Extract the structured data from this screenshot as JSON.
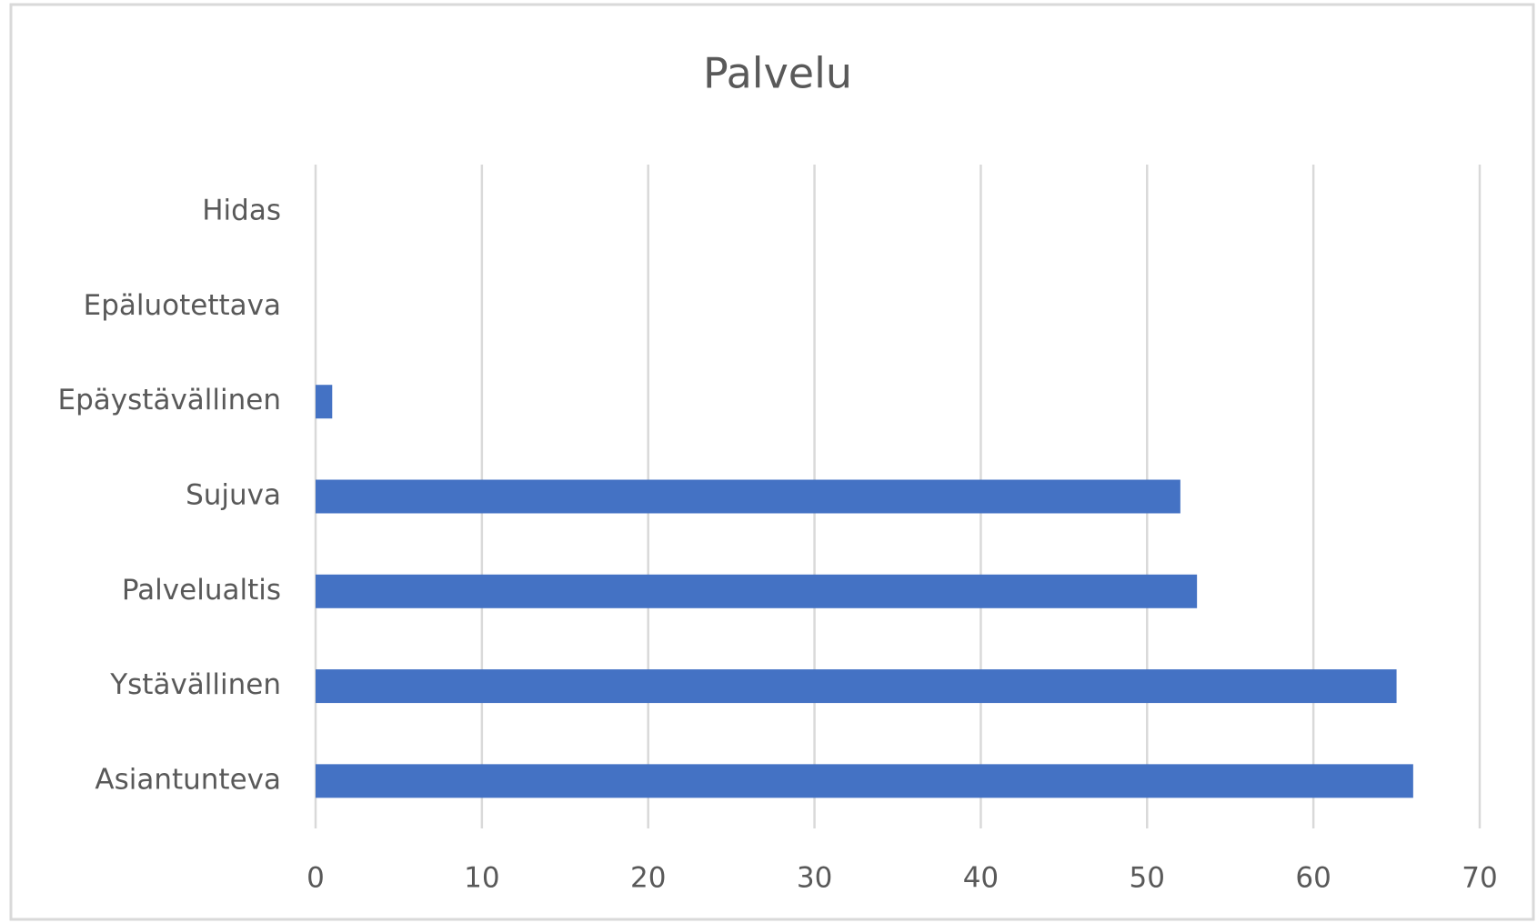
{
  "chart_data": {
    "type": "bar",
    "orientation": "horizontal",
    "title": "Palvelu",
    "categories": [
      "Hidas",
      "Epäluotettava",
      "Epäystävällinen",
      "Sujuva",
      "Palvelualtis",
      "Ystävällinen",
      "Asiantunteva"
    ],
    "values": [
      0,
      0,
      1,
      52,
      53,
      65,
      66
    ],
    "color": "#4472c4",
    "xlim": [
      0,
      70
    ],
    "xticks": [
      0,
      10,
      20,
      30,
      40,
      50,
      60,
      70
    ],
    "grid": true
  }
}
